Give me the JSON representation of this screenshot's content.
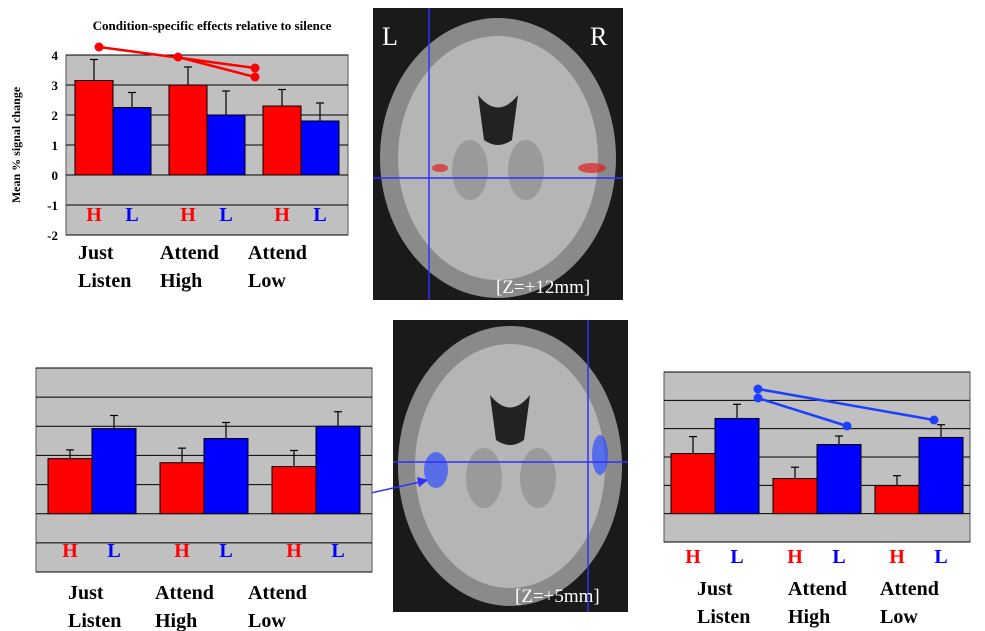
{
  "chart_data": [
    {
      "type": "bar",
      "title": "Condition-specific effects relative to silence",
      "y_label": "Mean % signal change",
      "categories": [
        "Just Listen",
        "Attend High",
        "Attend Low"
      ],
      "series": [
        {
          "name": "H",
          "color": "#ff0000",
          "values": [
            3.15,
            3.0,
            2.3
          ],
          "errors": [
            0.7,
            0.6,
            0.55
          ]
        },
        {
          "name": "L",
          "color": "#0000ff",
          "values": [
            2.25,
            2.0,
            1.8
          ],
          "errors": [
            0.5,
            0.8,
            0.6
          ]
        }
      ],
      "ylim": [
        -2,
        4
      ],
      "yticks": [
        -2,
        -1,
        0,
        1,
        2,
        3,
        4
      ],
      "grid": true,
      "tick_labels": true
    },
    {
      "type": "bar",
      "categories": [
        "Just Listen",
        "Attend High",
        "Attend Low"
      ],
      "series": [
        {
          "name": "H",
          "color": "#ff0000",
          "values": [
            1.89,
            1.75,
            1.62
          ],
          "errors": [
            0.3,
            0.5,
            0.55
          ]
        },
        {
          "name": "L",
          "color": "#0000ff",
          "values": [
            2.92,
            2.58,
            3.0
          ],
          "errors": [
            0.45,
            0.55,
            0.5
          ]
        }
      ],
      "ylim": [
        -2,
        5
      ],
      "yticks": [
        -2,
        -1,
        0,
        1,
        2,
        3,
        4,
        5
      ],
      "grid": true,
      "tick_labels": false
    },
    {
      "type": "bar",
      "categories": [
        "Just Listen",
        "Attend High",
        "Attend Low"
      ],
      "series": [
        {
          "name": "H",
          "color": "#ff0000",
          "values": [
            2.12,
            1.24,
            0.99
          ],
          "errors": [
            0.6,
            0.4,
            0.35
          ]
        },
        {
          "name": "L",
          "color": "#0000ff",
          "values": [
            3.36,
            2.44,
            2.69
          ],
          "errors": [
            0.5,
            0.3,
            0.45
          ]
        }
      ],
      "ylim": [
        -1,
        5
      ],
      "yticks": [
        -1,
        0,
        1,
        2,
        3,
        4,
        5
      ],
      "grid": true,
      "tick_labels": false
    }
  ],
  "images": [
    {
      "labels": [
        "L",
        "R",
        "[Z=+12mm]"
      ]
    },
    {
      "labels": [
        "[Z=+5mm]"
      ]
    }
  ]
}
